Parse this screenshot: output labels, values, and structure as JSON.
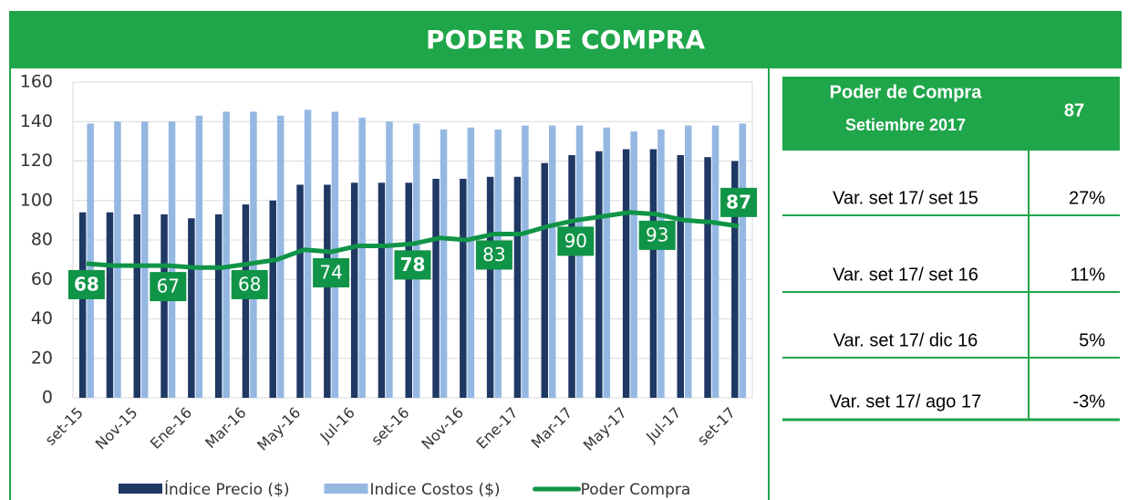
{
  "chart_data": {
    "type": "bar_line",
    "title": "PODER DE COMPRA",
    "categories": [
      "set-15",
      null,
      "Nov-15",
      null,
      "Ene-16",
      null,
      "Mar-16",
      null,
      "May-16",
      null,
      "Jul-16",
      null,
      "set-16",
      null,
      "Nov-16",
      null,
      "Ene-17",
      null,
      "Mar-17",
      null,
      "May-17",
      null,
      "Jul-17",
      null,
      "set-17"
    ],
    "series": [
      {
        "name": "Índice Precio ($)",
        "color": "#1f3864",
        "kind": "bar",
        "values": [
          94,
          94,
          93,
          93,
          91,
          93,
          98,
          100,
          108,
          108,
          109,
          109,
          109,
          111,
          111,
          112,
          112,
          119,
          123,
          125,
          126,
          126,
          123,
          122,
          120
        ]
      },
      {
        "name": "Indice Costos ($)",
        "color": "#95b8e3",
        "kind": "bar",
        "values": [
          139,
          140,
          140,
          140,
          143,
          145,
          145,
          143,
          146,
          145,
          142,
          140,
          139,
          136,
          137,
          136,
          138,
          138,
          138,
          137,
          135,
          136,
          138,
          138,
          139
        ]
      },
      {
        "name": "Poder Compra",
        "color": "#109447",
        "kind": "line",
        "label_every": 3,
        "values": [
          68,
          67,
          67,
          67,
          66,
          66,
          68,
          70,
          75,
          74,
          77,
          77,
          78,
          81,
          80,
          83,
          83,
          87,
          90,
          92,
          94,
          93,
          90,
          89,
          87
        ]
      }
    ],
    "ylim": [
      0,
      160
    ],
    "yticks": [
      0,
      20,
      40,
      60,
      80,
      100,
      120,
      140,
      160
    ],
    "grid": true
  },
  "table": {
    "header": {
      "label": "Poder de Compra",
      "sublabel": "Setiembre 2017",
      "value": "87"
    },
    "rows": [
      [
        "Var. set 17/ set 15",
        "27%"
      ],
      [
        "Var. set 17/ set 16",
        "11%"
      ],
      [
        "Var. set 17/ dic 16",
        "5%"
      ],
      [
        "Var. set 17/ ago 17",
        "-3%"
      ]
    ]
  }
}
